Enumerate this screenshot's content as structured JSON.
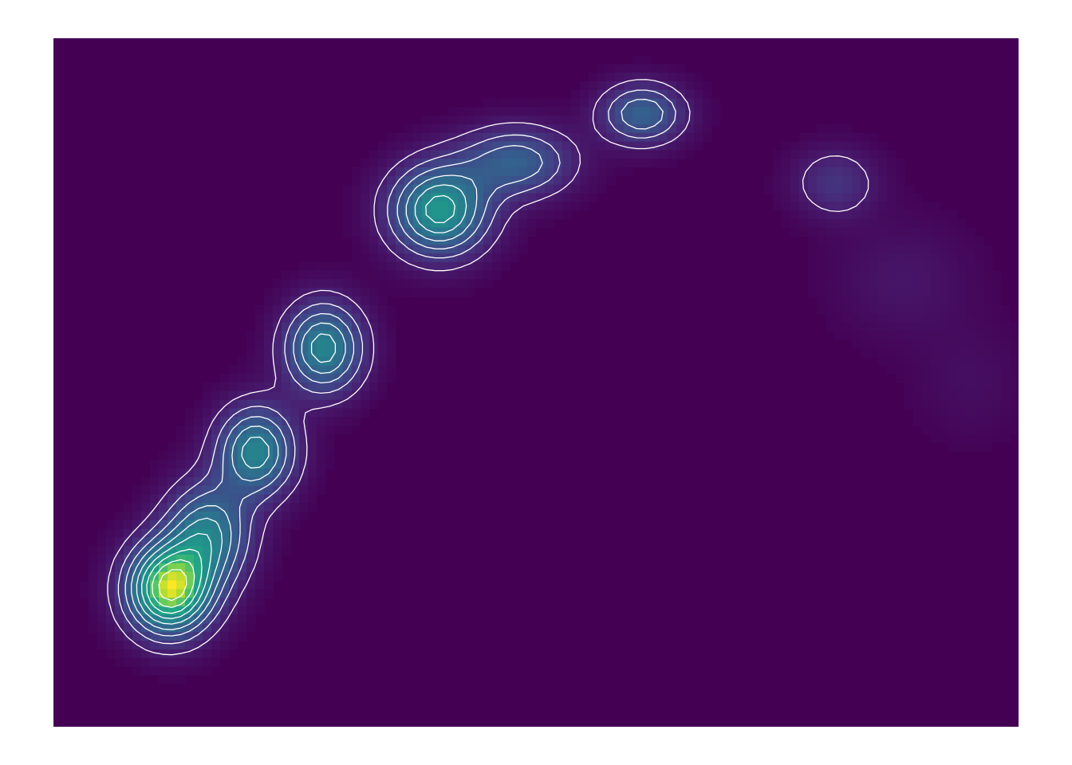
{
  "chart_data": {
    "type": "heatmap",
    "subtype": "2d-density-with-contours",
    "title": "",
    "xlabel": "",
    "ylabel": "",
    "axes_visible": false,
    "grid": false,
    "legend": "none",
    "colormap": "viridis",
    "colors": {
      "background": "#440154",
      "low": "#3b528b",
      "mid": "#21918c",
      "high": "#5ec962",
      "peak": "#fde725",
      "contour": "#ffffff",
      "page": "#ffffff"
    },
    "density_peaks": [
      {
        "x": 0.12,
        "y": 0.2,
        "height": 1.0,
        "sx": 0.03,
        "sy": 0.045
      },
      {
        "x": 0.16,
        "y": 0.28,
        "height": 0.55,
        "sx": 0.03,
        "sy": 0.05
      },
      {
        "x": 0.21,
        "y": 0.4,
        "height": 0.6,
        "sx": 0.028,
        "sy": 0.045
      },
      {
        "x": 0.28,
        "y": 0.55,
        "height": 0.6,
        "sx": 0.028,
        "sy": 0.045
      },
      {
        "x": 0.4,
        "y": 0.75,
        "height": 0.7,
        "sx": 0.035,
        "sy": 0.045
      },
      {
        "x": 0.48,
        "y": 0.82,
        "height": 0.4,
        "sx": 0.04,
        "sy": 0.035
      },
      {
        "x": 0.61,
        "y": 0.89,
        "height": 0.42,
        "sx": 0.03,
        "sy": 0.03
      },
      {
        "x": 0.81,
        "y": 0.79,
        "height": 0.2,
        "sx": 0.03,
        "sy": 0.035
      },
      {
        "x": 0.88,
        "y": 0.65,
        "height": 0.08,
        "sx": 0.05,
        "sy": 0.06
      },
      {
        "x": 0.95,
        "y": 0.5,
        "height": 0.05,
        "sx": 0.04,
        "sy": 0.06
      }
    ]
  }
}
